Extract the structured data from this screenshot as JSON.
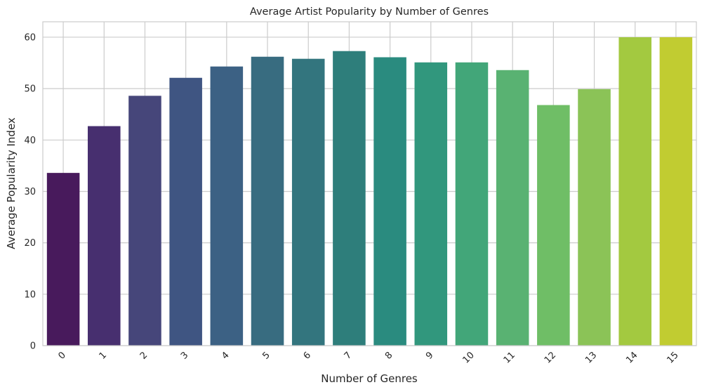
{
  "chart_data": {
    "type": "bar",
    "title": "Average Artist Popularity by Number of Genres",
    "xlabel": "Number of Genres",
    "ylabel": "Average Popularity Index",
    "categories": [
      "0",
      "1",
      "2",
      "3",
      "4",
      "5",
      "6",
      "7",
      "8",
      "9",
      "10",
      "11",
      "12",
      "13",
      "14",
      "15"
    ],
    "values": [
      33.6,
      42.7,
      48.6,
      52.1,
      54.3,
      56.2,
      55.8,
      57.3,
      56.1,
      55.1,
      55.1,
      53.6,
      46.8,
      49.9,
      60.0,
      60.0
    ],
    "ylim": [
      0,
      63
    ],
    "yticks": [
      0,
      10,
      20,
      30,
      40,
      50,
      60
    ],
    "grid": true,
    "legend": "none",
    "colors": [
      "#481a5c",
      "#472f6f",
      "#46467a",
      "#3f5582",
      "#3c6184",
      "#386c80",
      "#33757e",
      "#2e7e7b",
      "#2a8b7f",
      "#31977d",
      "#42a679",
      "#59b272",
      "#6fbe66",
      "#8bc357",
      "#a3c940",
      "#c1cc31"
    ]
  }
}
